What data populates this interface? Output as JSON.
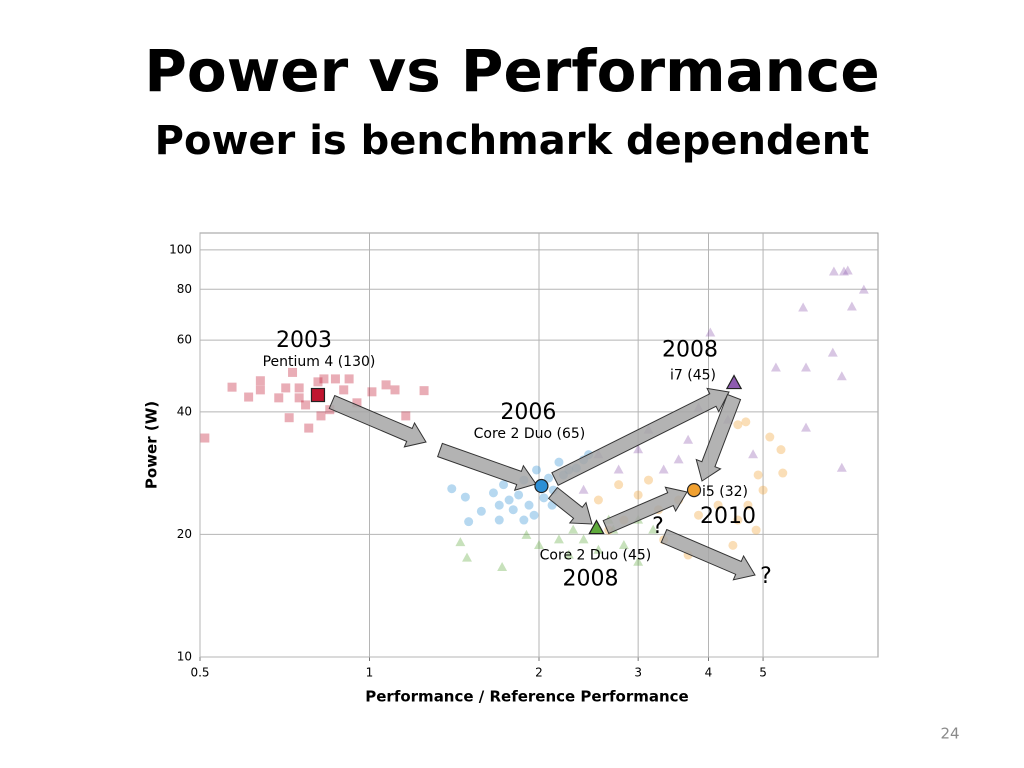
{
  "page_number": "24",
  "chart_data": {
    "type": "scatter",
    "title": "Power vs Performance",
    "subtitle": "Power is benchmark dependent",
    "x_label": "Performance / Reference Performance",
    "y_label": "Power (W)",
    "xscale": "log",
    "yscale": "log",
    "grid": true,
    "xlim": [
      0.5,
      8
    ],
    "ylim": [
      10,
      110
    ],
    "xticks": [
      0.5,
      1,
      2,
      3,
      4,
      5
    ],
    "yticks": [
      10,
      20,
      40,
      60,
      80,
      100
    ],
    "annotations": [
      "?",
      "?"
    ],
    "series": [
      {
        "name": "Pentium 4 (130)",
        "year": "2003",
        "color": "#c0152f",
        "marker": "square",
        "x": [
          0.51,
          0.57,
          0.61,
          0.64,
          0.64,
          0.69,
          0.71,
          0.73,
          0.75,
          0.72,
          0.77,
          0.78,
          0.81,
          0.83,
          0.85,
          0.87,
          0.9,
          0.92,
          0.95,
          1.01,
          1.07,
          1.11,
          1.16,
          1.25,
          0.82,
          0.75
        ],
        "y": [
          34.5,
          46,
          43.5,
          47.7,
          45.3,
          43.3,
          45.8,
          50,
          45.8,
          38.7,
          41.6,
          36.5,
          47.4,
          48.2,
          40.5,
          48.2,
          45.3,
          48.2,
          42.1,
          44.8,
          46.6,
          45.3,
          39.1,
          45.1,
          39.1,
          43.3
        ],
        "highlight": {
          "x": 0.81,
          "y": 44
        }
      },
      {
        "name": "Core 2 Duo (65)",
        "year": "2006",
        "color": "#2d8fd5",
        "marker": "circle",
        "x": [
          1.4,
          1.48,
          1.5,
          1.58,
          1.66,
          1.7,
          1.73,
          1.77,
          1.8,
          1.84,
          1.88,
          1.92,
          1.96,
          1.98,
          2.04,
          2.08,
          2.12,
          2.17,
          2.21,
          2.26,
          2.33,
          2.4,
          2.45,
          1.7,
          1.88,
          2.11
        ],
        "y": [
          25.9,
          24.7,
          21.5,
          22.8,
          25.3,
          23.6,
          26.5,
          24.3,
          23.0,
          25.0,
          27.2,
          23.6,
          22.3,
          28.8,
          24.6,
          27.5,
          25.7,
          30.1,
          28.0,
          28.8,
          29.1,
          30.5,
          31.4,
          21.7,
          21.7,
          23.6
        ],
        "highlight": {
          "x": 2.02,
          "y": 26.3
        }
      },
      {
        "name": "Core 2 Duo (45)",
        "year": "2008",
        "color": "#5faa3c",
        "marker": "triangle",
        "x": [
          1.45,
          1.49,
          1.72,
          1.9,
          2.0,
          2.17,
          2.3,
          2.4,
          2.55,
          2.71,
          2.83,
          3.0,
          3.19,
          2.66,
          3.0,
          2.26
        ],
        "y": [
          19.1,
          17.5,
          16.6,
          19.9,
          18.8,
          19.4,
          20.5,
          19.4,
          18.3,
          20.5,
          18.8,
          17.1,
          20.5,
          21.7,
          21.7,
          17.8
        ],
        "highlight": {
          "x": 2.53,
          "y": 20.7
        }
      },
      {
        "name": "i7 (45)",
        "year": "2008",
        "color": "#8e5bb0",
        "marker": "triangle",
        "x": [
          4.03,
          5.89,
          6.68,
          6.96,
          7.07,
          7.55,
          7.19,
          6.65,
          5.96,
          6.9,
          6.9,
          5.96,
          5.27,
          4.8,
          3.84,
          3.54,
          3.13,
          2.77,
          2.55,
          2.4,
          3.33,
          3.68,
          4.33,
          3.0
        ],
        "y": [
          62.5,
          72,
          88.3,
          88.3,
          88.8,
          79.7,
          72.4,
          55.8,
          51.3,
          48.8,
          29.1,
          36.5,
          51.3,
          31.4,
          40.9,
          30.5,
          36.1,
          28.8,
          31.4,
          25.7,
          28.8,
          34.1,
          38.2,
          32.3
        ],
        "highlight": {
          "x": 4.44,
          "y": 47
        }
      },
      {
        "name": "i5 (32)",
        "year": "2010",
        "color": "#f0a030",
        "marker": "circle",
        "x": [
          4.51,
          4.66,
          5.14,
          5.38,
          5.42,
          4.9,
          5.0,
          4.7,
          4.51,
          4.16,
          3.84,
          3.54,
          3.26,
          3.0,
          2.83,
          2.66,
          3.68,
          4.42,
          4.86,
          3.33,
          3.13,
          2.77,
          2.55
        ],
        "y": [
          37.2,
          37.8,
          34.7,
          32.3,
          28.3,
          28.0,
          25.7,
          23.6,
          21.7,
          23.6,
          22.3,
          24.3,
          23.0,
          25.0,
          21.7,
          20.5,
          17.8,
          18.8,
          20.5,
          19.4,
          27.2,
          26.5,
          24.3
        ],
        "highlight": {
          "x": 3.77,
          "y": 25.7
        }
      }
    ]
  }
}
